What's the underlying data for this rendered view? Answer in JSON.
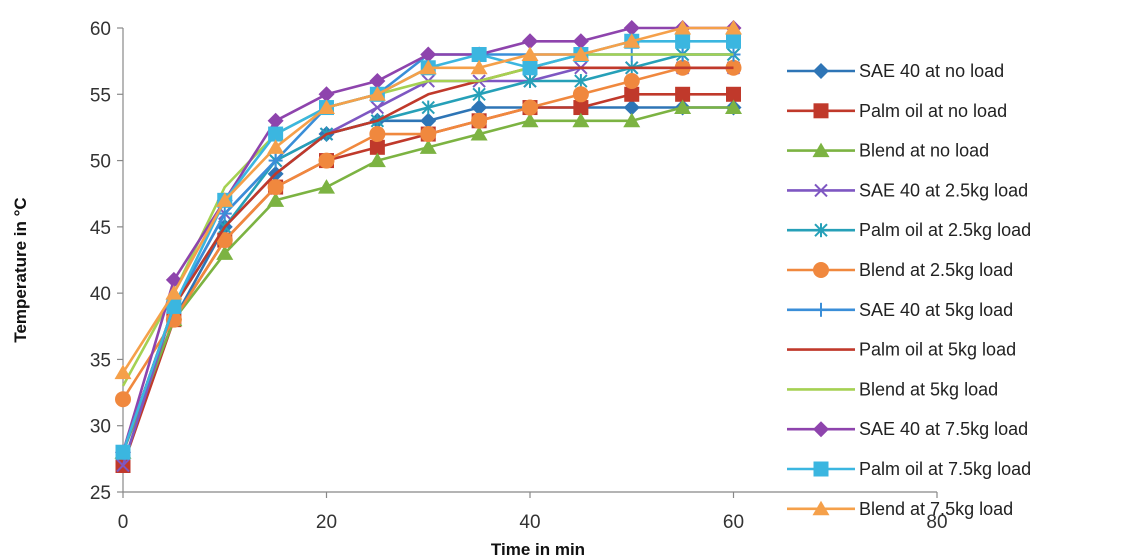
{
  "chart_data": {
    "type": "line",
    "title": "",
    "xlabel": "Time in min",
    "ylabel": "Temperature in °C",
    "xlim": [
      0,
      80
    ],
    "ylim": [
      25,
      60
    ],
    "x_ticks": [
      0,
      20,
      40,
      60,
      80
    ],
    "y_ticks": [
      25,
      30,
      35,
      40,
      45,
      50,
      55,
      60
    ],
    "grid": false,
    "legend_position": "right",
    "x": [
      0,
      5,
      10,
      15,
      20,
      25,
      30,
      35,
      40,
      45,
      50,
      55,
      60
    ],
    "series": [
      {
        "name": "SAE 40 at no load",
        "color": "#2e75b6",
        "marker": "diamond",
        "values": [
          28,
          38,
          45,
          49,
          52,
          53,
          53,
          54,
          54,
          54,
          54,
          54,
          54
        ]
      },
      {
        "name": "Palm oil at no load",
        "color": "#c0392b",
        "marker": "square",
        "values": [
          27,
          38,
          44,
          48,
          50,
          51,
          52,
          53,
          54,
          54,
          55,
          55,
          55
        ]
      },
      {
        "name": "Blend at no load",
        "color": "#7cb342",
        "marker": "triangle",
        "values": [
          28,
          38,
          43,
          47,
          48,
          50,
          51,
          52,
          53,
          53,
          53,
          54,
          54
        ]
      },
      {
        "name": "SAE 40 at 2.5kg load",
        "color": "#7e57c2",
        "marker": "x",
        "values": [
          27,
          39,
          46,
          50,
          52,
          54,
          56,
          56,
          56,
          57,
          57,
          57,
          57
        ]
      },
      {
        "name": "Palm oil at 2.5kg load",
        "color": "#26a0b8",
        "marker": "star",
        "values": [
          28,
          39,
          45,
          50,
          52,
          53,
          54,
          55,
          56,
          56,
          57,
          58,
          58
        ]
      },
      {
        "name": "Blend at 2.5kg load",
        "color": "#f0883e",
        "marker": "circle",
        "values": [
          32,
          38,
          44,
          48,
          50,
          52,
          52,
          53,
          54,
          55,
          56,
          57,
          57
        ]
      },
      {
        "name": "SAE 40 at 5kg load",
        "color": "#3a8ed8",
        "marker": "plus",
        "values": [
          28,
          39,
          46,
          50,
          54,
          55,
          58,
          58,
          58,
          58,
          58,
          58,
          58
        ]
      },
      {
        "name": "Palm oil at 5kg load",
        "color": "#c0392b",
        "marker": "none",
        "values": [
          28,
          39,
          45,
          49,
          52,
          53,
          55,
          56,
          57,
          57,
          57,
          57,
          57
        ]
      },
      {
        "name": "Blend at 5kg load",
        "color": "#a5d152",
        "marker": "none",
        "values": [
          33,
          40,
          48,
          52,
          54,
          55,
          56,
          56,
          57,
          58,
          58,
          58,
          58
        ]
      },
      {
        "name": "SAE 40 at 7.5kg load",
        "color": "#8e44ad",
        "marker": "diamond",
        "values": [
          28,
          41,
          47,
          53,
          55,
          56,
          58,
          58,
          59,
          59,
          60,
          60,
          60
        ]
      },
      {
        "name": "Palm oil at 7.5kg load",
        "color": "#3bb6e0",
        "marker": "square",
        "values": [
          28,
          39,
          47,
          52,
          54,
          55,
          57,
          58,
          57,
          58,
          59,
          59,
          59
        ]
      },
      {
        "name": "Blend at 7.5kg load",
        "color": "#f5a04a",
        "marker": "triangle",
        "values": [
          34,
          40,
          47,
          51,
          54,
          55,
          57,
          57,
          58,
          58,
          59,
          60,
          60
        ]
      }
    ]
  }
}
